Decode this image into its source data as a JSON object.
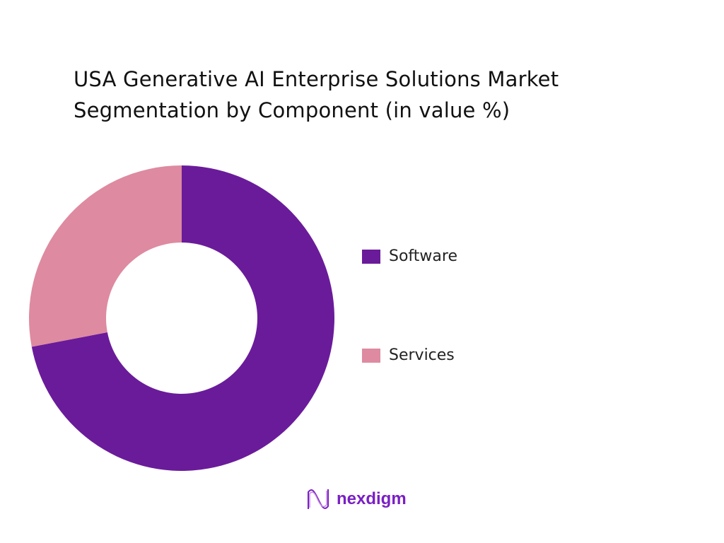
{
  "chart_data": {
    "type": "pie",
    "donut": true,
    "title_lines": [
      "USA Generative AI Enterprise Solutions Market",
      "Segmentation by Component (in value %)"
    ],
    "categories": [
      "Software",
      "Services"
    ],
    "values": [
      72,
      28
    ],
    "unit": "%",
    "colors": [
      "#6a1b9a",
      "#de8aa0"
    ],
    "legend_position": "right"
  },
  "brand": {
    "name": "nexdigm",
    "color": "#7a1fc4"
  }
}
